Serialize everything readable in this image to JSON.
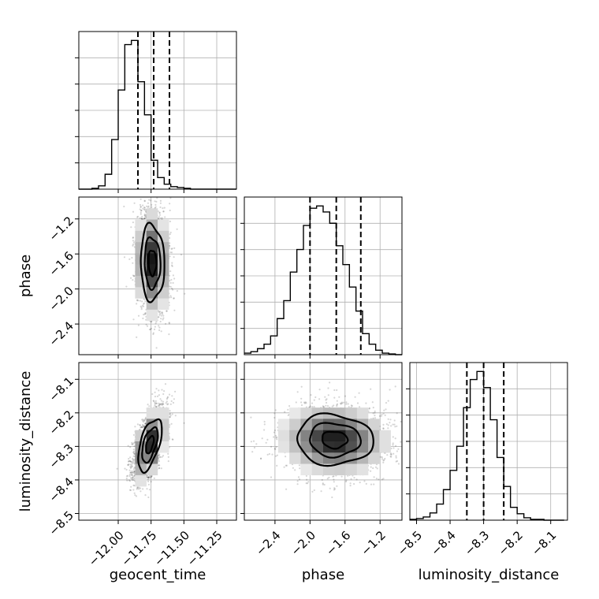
{
  "chart_data": {
    "type": "corner",
    "parameters": [
      "geocent_time",
      "phase",
      "luminosity_distance"
    ],
    "axes": {
      "geocent_time": {
        "label": "geocent_time",
        "range": [
          -12.3,
          -11.1
        ],
        "ticks": [
          -12.0,
          -11.75,
          -11.5,
          -11.25
        ],
        "tick_labels": [
          "−12.00",
          "−11.75",
          "−11.50",
          "−11.25"
        ]
      },
      "phase": {
        "label": "phase",
        "range": [
          -2.75,
          -0.95
        ],
        "ticks": [
          -2.4,
          -2.0,
          -1.6,
          -1.2
        ],
        "tick_labels": [
          "−2.4",
          "−2.0",
          "−1.6",
          "−1.2"
        ]
      },
      "luminosity_distance": {
        "label": "luminosity_distance",
        "range": [
          -8.52,
          -8.05
        ],
        "ticks": [
          -8.5,
          -8.4,
          -8.3,
          -8.2,
          -8.1
        ],
        "tick_labels": [
          "−8.5",
          "−8.4",
          "−8.3",
          "−8.2",
          "−8.1"
        ]
      }
    },
    "histograms": {
      "geocent_time": {
        "bins": [
          -12.3,
          -12.25,
          -12.2,
          -12.15,
          -12.1,
          -12.05,
          -12.0,
          -11.95,
          -11.9,
          -11.85,
          -11.8,
          -11.75,
          -11.7,
          -11.65,
          -11.6,
          -11.55,
          -11.5,
          -11.45,
          -11.4,
          -11.35,
          -11.3,
          -11.25,
          -11.2,
          -11.15,
          -11.1
        ],
        "counts": [
          0,
          0,
          1,
          4,
          18,
          60,
          120,
          175,
          180,
          130,
          90,
          35,
          14,
          6,
          3,
          2,
          1,
          0,
          0,
          0,
          0,
          0,
          0,
          0
        ],
        "quantiles": [
          -11.85,
          -11.73,
          -11.61
        ]
      },
      "phase": {
        "bins": [
          -2.75,
          -2.675,
          -2.6,
          -2.525,
          -2.45,
          -2.375,
          -2.3,
          -2.225,
          -2.15,
          -2.075,
          -2.0,
          -1.925,
          -1.85,
          -1.775,
          -1.7,
          -1.625,
          -1.55,
          -1.475,
          -1.4,
          -1.325,
          -1.25,
          -1.175,
          -1.1,
          -1.025,
          -0.95
        ],
        "counts": [
          2,
          4,
          8,
          14,
          25,
          48,
          72,
          110,
          140,
          172,
          195,
          198,
          190,
          175,
          145,
          120,
          90,
          58,
          28,
          14,
          6,
          2,
          1,
          0
        ],
        "quantiles": [
          -2.0,
          -1.7,
          -1.42
        ]
      },
      "luminosity_distance": {
        "bins": [
          -8.52,
          -8.5,
          -8.48,
          -8.46,
          -8.44,
          -8.42,
          -8.4,
          -8.38,
          -8.36,
          -8.34,
          -8.32,
          -8.3,
          -8.28,
          -8.26,
          -8.24,
          -8.22,
          -8.2,
          -8.18,
          -8.16,
          -8.14,
          -8.12,
          -8.1,
          -8.08,
          -8.06
        ],
        "counts": [
          1,
          2,
          4,
          9,
          20,
          38,
          62,
          92,
          140,
          175,
          185,
          165,
          125,
          78,
          42,
          16,
          8,
          3,
          1,
          1,
          0,
          0,
          0
        ],
        "quantiles": [
          -8.35,
          -8.3,
          -8.24
        ]
      }
    },
    "joint": [
      {
        "x": "geocent_time",
        "y": "phase",
        "center": [
          -11.74,
          -1.7
        ],
        "sigma": [
          0.06,
          0.29
        ],
        "corr": -0.05,
        "contour_levels": [
          0.5,
          1.0,
          1.5
        ]
      },
      {
        "x": "geocent_time",
        "y": "luminosity_distance",
        "center": [
          -11.76,
          -8.295
        ],
        "sigma": [
          0.06,
          0.052
        ],
        "corr": 0.55,
        "contour_levels": [
          0.5,
          1.0,
          1.5
        ]
      },
      {
        "x": "phase",
        "y": "luminosity_distance",
        "center": [
          -1.72,
          -8.28
        ],
        "sigma": [
          0.29,
          0.05
        ],
        "corr": -0.05,
        "contour_levels": [
          0.5,
          1.0,
          1.5
        ]
      }
    ],
    "grid": true,
    "style": {
      "line_color": "#000000",
      "density_color": "#000000",
      "grid_color": "#b0b0b0"
    }
  }
}
